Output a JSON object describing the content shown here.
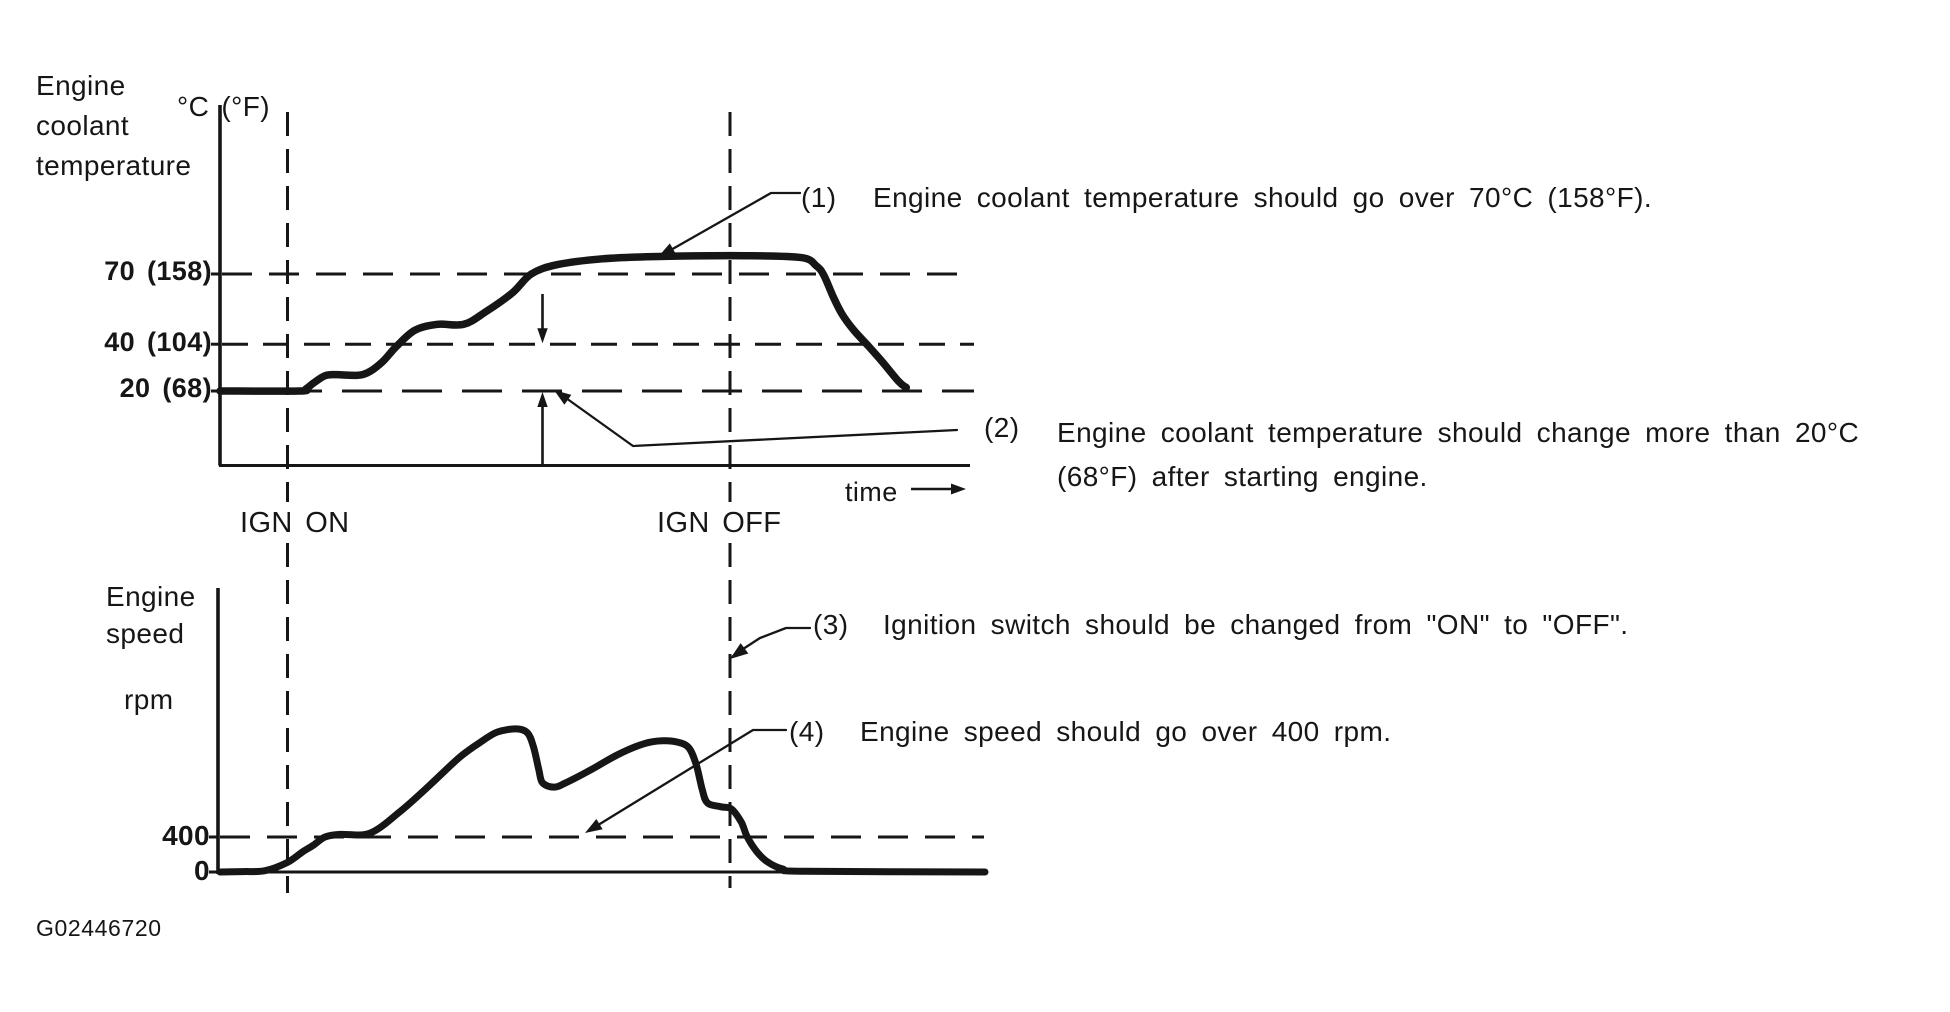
{
  "figure": {
    "code": "G02446720",
    "ink": "#161616",
    "background": "#ffffff"
  },
  "labels": {
    "ign_on": "IGN ON",
    "ign_off": "IGN OFF",
    "time": "time"
  },
  "annotations": [
    {
      "num": "(1)",
      "text": "Engine coolant temperature should go over 70°C (158°F)."
    },
    {
      "num": "(2)",
      "line1": "Engine coolant temperature should change more than 20°C",
      "line2": "(68°F) after starting engine."
    },
    {
      "num": "(3)",
      "text": "Ignition switch should be changed from \"ON\" to \"OFF\"."
    },
    {
      "num": "(4)",
      "text": "Engine speed should go over 400 rpm."
    }
  ],
  "chart_data": [
    {
      "id": "coolant-temperature",
      "type": "line",
      "title_lines": [
        "Engine",
        "coolant",
        "temperature"
      ],
      "unit_label": "°C (°F)",
      "x_axis": {
        "label": "time",
        "unit": "arbitrary",
        "range": [
          0,
          100
        ]
      },
      "y_ticks": [
        {
          "value_c": 70,
          "label": "70 (158)"
        },
        {
          "value_c": 40,
          "label": "40 (104)"
        },
        {
          "value_c": 20,
          "label": "20 (68)"
        }
      ],
      "reference_lines_c": [
        70,
        40,
        20
      ],
      "events": [
        {
          "name": "IGN ON",
          "t": 9
        },
        {
          "name": "IGN OFF",
          "t": 68
        }
      ],
      "dimension_marker": {
        "t": 43,
        "from_c": 20,
        "to_c": 40
      },
      "series": [
        {
          "name": "engine-coolant-temperature",
          "points": [
            [
              0,
              20
            ],
            [
              10.5,
              20
            ],
            [
              11.5,
              21
            ],
            [
              12.5,
              23.5
            ],
            [
              14,
              26.5
            ],
            [
              15.5,
              27
            ],
            [
              19,
              27
            ],
            [
              21.5,
              32
            ],
            [
              23.5,
              39
            ],
            [
              26,
              46
            ],
            [
              29,
              48.5
            ],
            [
              32.5,
              48.5
            ],
            [
              35.5,
              54
            ],
            [
              39,
              62
            ],
            [
              41.5,
              70
            ],
            [
              45,
              74
            ],
            [
              51,
              76.5
            ],
            [
              58.5,
              77.5
            ],
            [
              70,
              77.8
            ],
            [
              77.5,
              77
            ],
            [
              79.5,
              73.5
            ],
            [
              80.5,
              69.5
            ],
            [
              81.8,
              60
            ],
            [
              83,
              52.5
            ],
            [
              84.5,
              46
            ],
            [
              86.5,
              39
            ],
            [
              88.3,
              32.5
            ],
            [
              90.5,
              24
            ],
            [
              91.5,
              21.5
            ]
          ]
        }
      ]
    },
    {
      "id": "engine-speed",
      "type": "line",
      "title_lines": [
        "Engine",
        "speed"
      ],
      "unit_label": "rpm",
      "x_axis": {
        "label": "time",
        "unit": "arbitrary",
        "range": [
          0,
          102
        ]
      },
      "y_ticks": [
        {
          "value_rpm": 400,
          "label": "400"
        },
        {
          "value_rpm": 0,
          "label": "0"
        }
      ],
      "reference_lines_rpm": [
        400
      ],
      "events": [
        {
          "name": "IGN ON",
          "t": 9
        },
        {
          "name": "IGN OFF",
          "t": 68
        }
      ],
      "series": [
        {
          "name": "engine-speed",
          "points": [
            [
              0,
              0
            ],
            [
              3,
              5
            ],
            [
              6,
              15
            ],
            [
              9,
              110
            ],
            [
              11,
              230
            ],
            [
              12.5,
              310
            ],
            [
              14,
              400
            ],
            [
              16,
              430
            ],
            [
              20,
              445
            ],
            [
              24,
              690
            ],
            [
              28,
              995
            ],
            [
              32,
              1315
            ],
            [
              35,
              1500
            ],
            [
              37,
              1600
            ],
            [
              39.5,
              1635
            ],
            [
              41,
              1590
            ],
            [
              41.8,
              1430
            ],
            [
              42.5,
              1170
            ],
            [
              43,
              1020
            ],
            [
              44.5,
              970
            ],
            [
              46,
              1015
            ],
            [
              49.5,
              1170
            ],
            [
              53,
              1340
            ],
            [
              56.5,
              1465
            ],
            [
              59,
              1500
            ],
            [
              61,
              1485
            ],
            [
              62.5,
              1420
            ],
            [
              63.5,
              1225
            ],
            [
              64.3,
              940
            ],
            [
              65,
              790
            ],
            [
              66.8,
              745
            ],
            [
              68.2,
              720
            ],
            [
              69.5,
              570
            ],
            [
              70.3,
              400
            ],
            [
              71.6,
              230
            ],
            [
              73,
              115
            ],
            [
              75,
              35
            ],
            [
              78,
              8
            ],
            [
              102,
              0
            ]
          ]
        }
      ]
    }
  ]
}
